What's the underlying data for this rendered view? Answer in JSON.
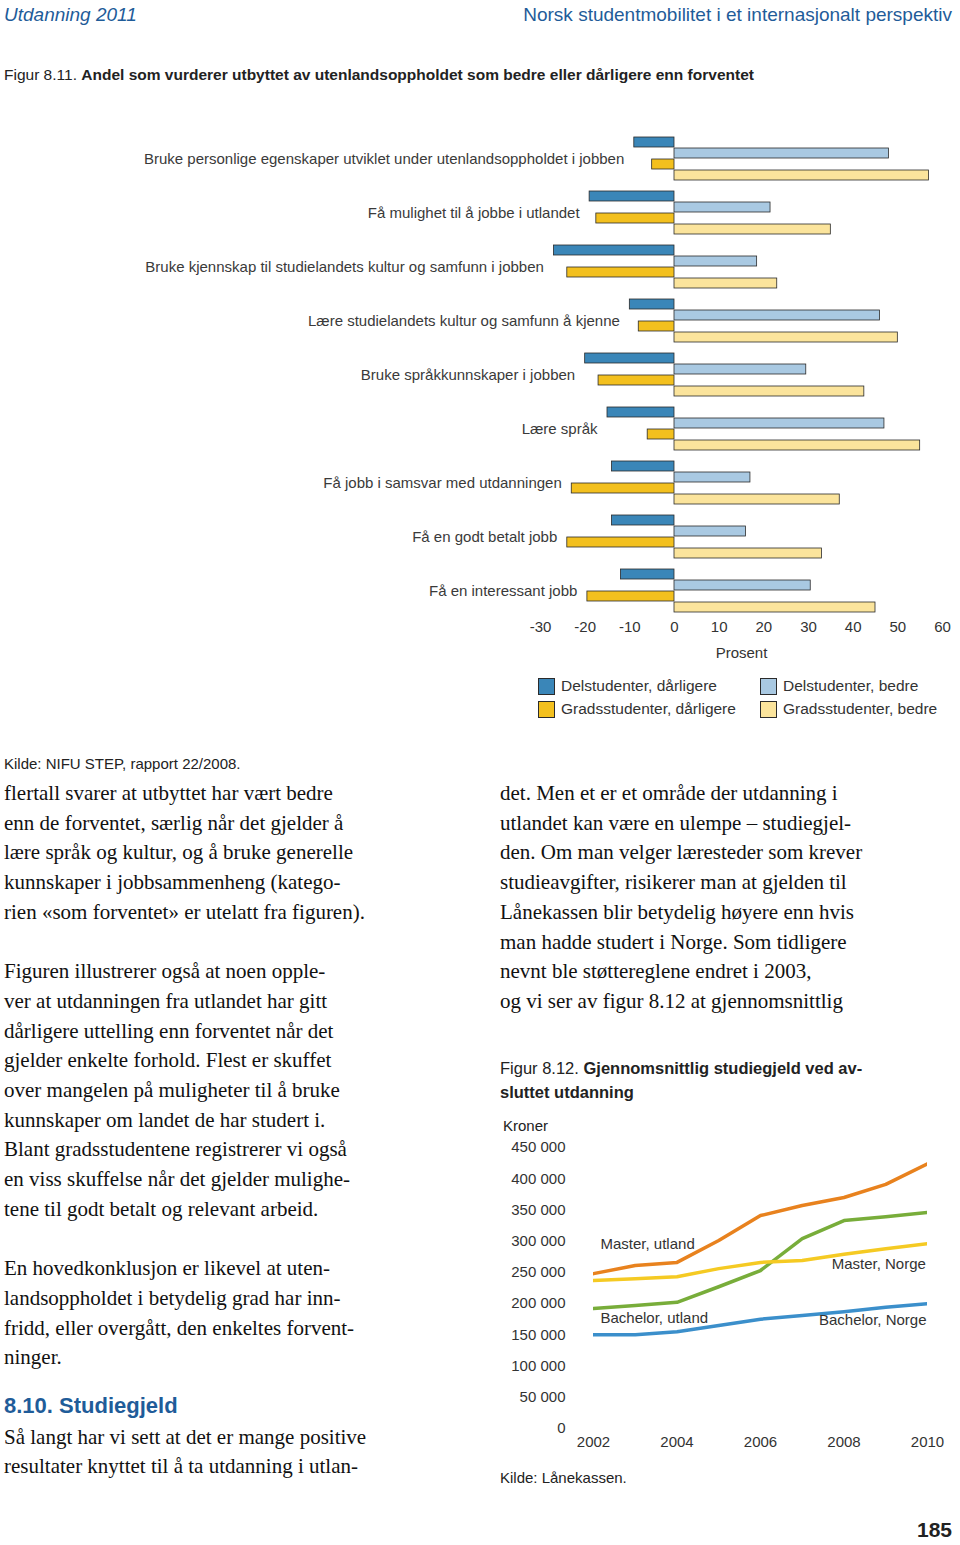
{
  "header": {
    "left": "Utdanning 2011",
    "right": "Norsk studentmobilitet i et internasjonalt perspektiv"
  },
  "chart_data": [
    {
      "type": "bar",
      "orientation": "horizontal",
      "figure_label": "Figur 8.11.",
      "title": "Andel som vurderer utbyttet av utenlandsoppholdet som bedre eller dårligere enn forventet",
      "categories": [
        "Bruke personlige egenskaper utviklet under utenlandsoppholdet i jobben",
        "Få mulighet til å jobbe i utlandet",
        "Bruke kjennskap til studielandets kultur og samfunn i jobben",
        "Lære studielandets kultur og samfunn å kjenne",
        "Bruke språkkunnskaper i jobben",
        "Lære språk",
        "Få jobb i samsvar med utdanningen",
        "Få en godt betalt jobb",
        "Få en interessant jobb"
      ],
      "series": [
        {
          "name": "Delstudenter, dårligere",
          "color": "#3a86b8",
          "values": [
            -9,
            -19,
            -27,
            -10,
            -20,
            -15,
            -14,
            -14,
            -12
          ]
        },
        {
          "name": "Delstudenter, bedre",
          "color": "#a9c9e2",
          "values": [
            48,
            21.5,
            18.5,
            46,
            29.5,
            47,
            17,
            16,
            30.5
          ]
        },
        {
          "name": "Gradsstudenter, dårligere",
          "color": "#f3c01e",
          "values": [
            -5,
            -17.5,
            -24,
            -8,
            -17,
            -6,
            -23,
            -24,
            -19.5
          ]
        },
        {
          "name": "Gradsstudenter, bedre",
          "color": "#fbe49c",
          "values": [
            57,
            35,
            23,
            50,
            42.5,
            55,
            37,
            33,
            45
          ]
        }
      ],
      "xlim": [
        -30,
        60
      ],
      "xticks": [
        -30,
        -20,
        -10,
        0,
        10,
        20,
        30,
        40,
        50,
        60
      ],
      "xlabel": "Prosent",
      "legend": "bottom right",
      "source": "Kilde: NIFU STEP, rapport 22/2008."
    },
    {
      "type": "line",
      "figure_label": "Figur 8.12.",
      "title": [
        "Gjennomsnittlig studiegjeld ved av-",
        "sluttet utdanning"
      ],
      "ylabel": "Kroner",
      "x": [
        2002,
        2003,
        2004,
        2005,
        2006,
        2007,
        2008,
        2009,
        2010
      ],
      "series": [
        {
          "name": "Master, utland",
          "color": "#e8821e",
          "values": [
            248000,
            261000,
            266000,
            301000,
            341000,
            357000,
            370000,
            391000,
            424000
          ]
        },
        {
          "name": "Bachelor, utland",
          "color": "#78ad3a",
          "values": [
            192000,
            197000,
            202000,
            227000,
            253000,
            304000,
            333000,
            339000,
            346000
          ]
        },
        {
          "name": "Master, Norge",
          "color": "#f5ca23",
          "values": [
            237000,
            240000,
            243000,
            256000,
            266000,
            269000,
            279000,
            288000,
            296000
          ]
        },
        {
          "name": "Bachelor, Norge",
          "color": "#3b8fcb",
          "values": [
            150000,
            150000,
            155000,
            165000,
            175000,
            181000,
            187000,
            194000,
            200000
          ]
        }
      ],
      "xlim": [
        2002,
        2010
      ],
      "xticks": [
        2002,
        2004,
        2006,
        2008,
        2010
      ],
      "ylim": [
        0,
        450000
      ],
      "yticks": [
        0,
        {
          "value": 50000,
          "label": "50 000"
        },
        {
          "value": 100000,
          "label": "100 000"
        },
        {
          "value": 150000,
          "label": "150 000"
        },
        {
          "value": 200000,
          "label": "200 000"
        },
        {
          "value": 250000,
          "label": "250 000"
        },
        {
          "value": 300000,
          "label": "300 000"
        },
        {
          "value": 350000,
          "label": "350 000"
        },
        {
          "value": 400000,
          "label": "400 000"
        },
        {
          "value": 450000,
          "label": "450 000"
        }
      ],
      "source": "Kilde: Lånekassen."
    }
  ],
  "columns": {
    "left": [
      {
        "type": "paragraph",
        "lines": [
          "flertall svarer at utbyttet har vært bedre",
          "enn de forventet, særlig når det gjelder å",
          "lære språk og kultur, og å bruke generelle",
          "kunnskaper i jobbsammenheng (katego-",
          "rien «som forventet» er utelatt fra figuren)."
        ]
      },
      {
        "type": "paragraph",
        "lines": [
          "Figuren illustrerer også at noen opple-",
          "ver at utdanningen fra utlandet har gitt",
          "dårligere uttelling enn forventet når det",
          "gjelder enkelte forhold. Flest er skuffet",
          "over mangelen på muligheter til å bruke",
          "kunnskaper om landet de har studert i.",
          "Blant gradsstudentene registrerer vi også",
          "en viss skuffelse når det gjelder mulighe-",
          "tene til godt betalt og relevant arbeid."
        ]
      },
      {
        "type": "paragraph",
        "lines": [
          "En hovedkonklusjon er likevel at uten-",
          "landsoppholdet i betydelig grad har inn-",
          "fridd, eller overgått, den enkeltes forvent-",
          "ninger."
        ]
      },
      {
        "type": "heading",
        "text": "8.10. Studiegjeld"
      },
      {
        "type": "paragraph",
        "lines": [
          "Så langt har vi sett at det er mange positive",
          "resultater knyttet til å ta utdanning i utlan-"
        ]
      }
    ],
    "right": [
      {
        "type": "paragraph",
        "lines": [
          "det. Men et er et område der utdanning i",
          "utlandet kan være en ulempe – studiegjel-",
          "den. Om man velger læresteder som krever",
          "studieavgifter, risikerer man at gjelden til",
          "Lånekassen blir betydelig høyere enn hvis",
          "man hadde studert i Norge. Som tidligere",
          "nevnt ble støttereglene endret i 2003,",
          "og vi ser av figur 8.12 at gjennomsnittlig"
        ]
      }
    ]
  },
  "page_number": "185"
}
